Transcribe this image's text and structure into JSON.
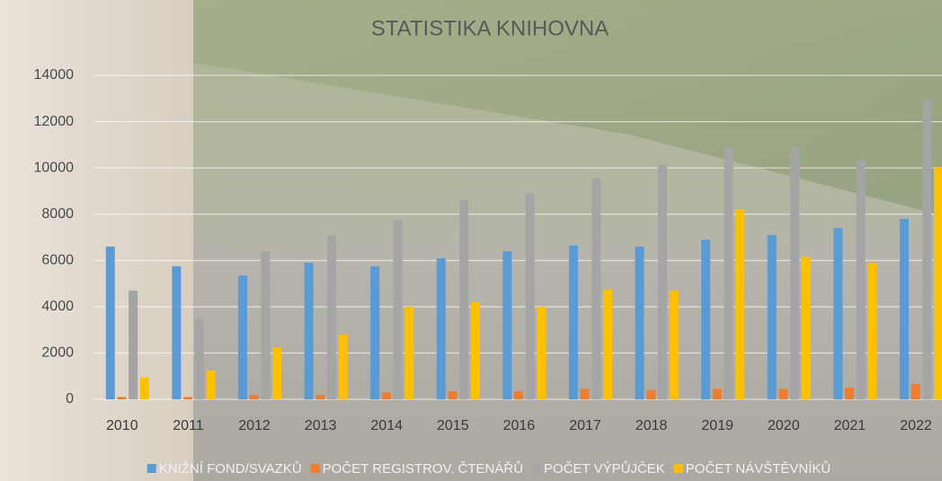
{
  "chart_data": {
    "type": "bar",
    "title": "STATISTIKA KNIHOVNA",
    "categories": [
      "2010",
      "2011",
      "2012",
      "2013",
      "2014",
      "2015",
      "2016",
      "2017",
      "2018",
      "2019",
      "2020",
      "2021",
      "2022"
    ],
    "series": [
      {
        "name": "KNIŽNÍ FOND/SVAZKŮ",
        "color": "#5b9bd5",
        "values": [
          6600,
          5750,
          5350,
          5900,
          5750,
          6100,
          6400,
          6650,
          6600,
          6900,
          7100,
          7400,
          7800
        ]
      },
      {
        "name": "POČET REGISTROV. ČTENÁŘŮ",
        "color": "#ed7d31",
        "values": [
          100,
          100,
          200,
          200,
          300,
          350,
          350,
          450,
          400,
          450,
          450,
          500,
          650
        ]
      },
      {
        "name": "POČET VÝPŮJČEK",
        "color": "#a5a5a5",
        "values": [
          4700,
          3500,
          6400,
          7100,
          7750,
          8600,
          8900,
          9550,
          10150,
          10900,
          10900,
          10350,
          12950
        ]
      },
      {
        "name": "POČET NÁVŠTĚVNÍKŮ",
        "color": "#ffc000",
        "values": [
          950,
          1250,
          2250,
          2800,
          4000,
          4200,
          4000,
          4750,
          4700,
          8200,
          6150,
          5900,
          10050
        ]
      }
    ],
    "ylim": [
      0,
      14000
    ],
    "yticks": [
      0,
      2000,
      4000,
      6000,
      8000,
      10000,
      12000,
      14000
    ],
    "grid": true,
    "legend": "bottom"
  }
}
